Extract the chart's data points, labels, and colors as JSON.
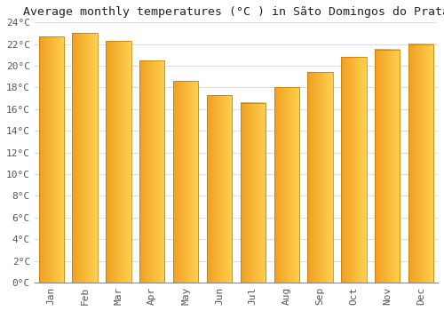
{
  "months": [
    "Jan",
    "Feb",
    "Mar",
    "Apr",
    "May",
    "Jun",
    "Jul",
    "Aug",
    "Sep",
    "Oct",
    "Nov",
    "Dec"
  ],
  "values": [
    22.7,
    23.0,
    22.3,
    20.5,
    18.6,
    17.3,
    16.6,
    18.0,
    19.4,
    20.8,
    21.5,
    22.0
  ],
  "bar_color_left": "#F0A020",
  "bar_color_right": "#FFD050",
  "title": "Average monthly temperatures (°C ) in Sãto Domingos do Prata",
  "ylim": [
    0,
    24
  ],
  "yticks": [
    0,
    2,
    4,
    6,
    8,
    10,
    12,
    14,
    16,
    18,
    20,
    22,
    24
  ],
  "ytick_labels": [
    "0°C",
    "2°C",
    "4°C",
    "6°C",
    "8°C",
    "10°C",
    "12°C",
    "14°C",
    "16°C",
    "18°C",
    "20°C",
    "22°C",
    "24°C"
  ],
  "background_color": "#FFFFFF",
  "grid_color": "#DDDDDD",
  "title_fontsize": 9.5,
  "tick_fontsize": 8,
  "font_family": "monospace",
  "bar_edge_color": "#C08000",
  "bar_width": 0.75
}
